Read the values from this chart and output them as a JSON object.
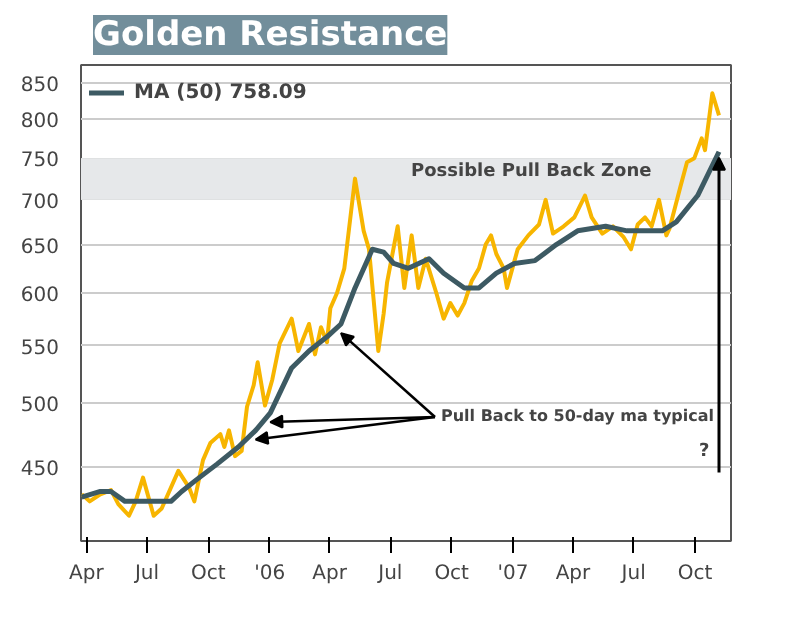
{
  "chart_data": {
    "type": "line",
    "title": "Golden Resistance",
    "log": "y",
    "grid": "y",
    "legend": "top left",
    "marker": "none",
    "line_style": "solid",
    "xlim": [
      "2005-03-24",
      "2007-11-24"
    ],
    "ylim": [
      398,
      875
    ],
    "xticks": [
      {
        "value": "2005-04-01",
        "label": "Apr"
      },
      {
        "value": "2005-07-01",
        "label": "Jul"
      },
      {
        "value": "2005-10-01",
        "label": "Oct"
      },
      {
        "value": "2006-01-01",
        "label": "'06"
      },
      {
        "value": "2006-04-01",
        "label": "Apr"
      },
      {
        "value": "2006-07-01",
        "label": "Jul"
      },
      {
        "value": "2006-10-01",
        "label": "Oct"
      },
      {
        "value": "2007-01-01",
        "label": "'07"
      },
      {
        "value": "2007-04-01",
        "label": "Apr"
      },
      {
        "value": "2007-07-01",
        "label": "Jul"
      },
      {
        "value": "2007-10-01",
        "label": "Oct"
      }
    ],
    "yticks": [
      450,
      500,
      550,
      600,
      650,
      700,
      750,
      800,
      850
    ],
    "bands": [
      {
        "axis": "y",
        "from": 700,
        "to": 750,
        "label": "Possible Pull Back Zone",
        "color": "#e6e8ea"
      }
    ],
    "annotations": [
      {
        "text": "Pull Back to 50-day ma typical",
        "x": "2006-01-02",
        "y": 492
      },
      "?"
    ],
    "series": [
      {
        "color": "#f7b500",
        "x": [
          "2005-03-25",
          "2005-04-06",
          "2005-04-22",
          "2005-05-08",
          "2005-05-19",
          "2005-06-04",
          "2005-06-14",
          "2005-06-25",
          "2005-07-11",
          "2005-07-23",
          "2005-08-17",
          "2005-09-02",
          "2005-09-10",
          "2005-09-23",
          "2005-10-04",
          "2005-10-19",
          "2005-10-25",
          "2005-11-01",
          "2005-11-10",
          "2005-11-20",
          "2005-11-28",
          "2005-12-08",
          "2005-12-14",
          "2005-12-25",
          "2006-01-05",
          "2006-01-16",
          "2006-02-03",
          "2006-02-13",
          "2006-03-01",
          "2006-03-10",
          "2006-03-19",
          "2006-03-28",
          "2006-04-02",
          "2006-04-12",
          "2006-04-23",
          "2006-05-09",
          "2006-05-22",
          "2006-05-30",
          "2006-06-13",
          "2006-06-21",
          "2006-06-26",
          "2006-07-12",
          "2006-07-22",
          "2006-08-02",
          "2006-08-12",
          "2006-08-23",
          "2006-09-08",
          "2006-09-19",
          "2006-09-29",
          "2006-10-10",
          "2006-10-20",
          "2006-10-31",
          "2006-11-11",
          "2006-11-21",
          "2006-11-29",
          "2006-12-07",
          "2006-12-18",
          "2006-12-23",
          "2007-01-08",
          "2007-01-24",
          "2007-02-09",
          "2007-02-19",
          "2007-03-02",
          "2007-03-18",
          "2007-04-03",
          "2007-04-19",
          "2007-04-29",
          "2007-05-15",
          "2007-05-31",
          "2007-06-16",
          "2007-06-27",
          "2007-07-07",
          "2007-07-18",
          "2007-07-28",
          "2007-08-08",
          "2007-08-19",
          "2007-08-24",
          "2007-09-09",
          "2007-09-19",
          "2007-09-30",
          "2007-10-11",
          "2007-10-16",
          "2007-10-27",
          "2007-11-06"
        ],
        "values": [
          430,
          425,
          430,
          433,
          423,
          415,
          425,
          442,
          415,
          420,
          447,
          435,
          425,
          455,
          468,
          475,
          465,
          478,
          458,
          462,
          497,
          515,
          535,
          498,
          520,
          552,
          575,
          545,
          570,
          542,
          567,
          553,
          585,
          600,
          625,
          725,
          665,
          645,
          545,
          580,
          610,
          670,
          605,
          660,
          605,
          635,
          600,
          575,
          590,
          578,
          590,
          612,
          625,
          650,
          660,
          640,
          625,
          605,
          645,
          660,
          672,
          700,
          662,
          670,
          680,
          705,
          680,
          662,
          670,
          658,
          645,
          672,
          680,
          670,
          700,
          660,
          668,
          715,
          745,
          750,
          775,
          760,
          835,
          805
        ]
      },
      {
        "name": "MA (50) 758.09",
        "color": "#3d5a63",
        "x": [
          "2005-03-25",
          "2005-04-22",
          "2005-05-08",
          "2005-05-29",
          "2005-07-11",
          "2005-08-06",
          "2005-08-22",
          "2005-09-12",
          "2005-10-14",
          "2005-11-15",
          "2005-12-11",
          "2006-01-02",
          "2006-02-03",
          "2006-03-01",
          "2006-03-28",
          "2006-04-18",
          "2006-05-09",
          "2006-06-04",
          "2006-06-21",
          "2006-07-06",
          "2006-07-28",
          "2006-08-28",
          "2006-09-19",
          "2006-10-20",
          "2006-11-11",
          "2006-12-07",
          "2007-01-03",
          "2007-02-03",
          "2007-03-07",
          "2007-04-08",
          "2007-05-20",
          "2007-06-21",
          "2007-08-13",
          "2007-09-03",
          "2007-10-05",
          "2007-11-06"
        ],
        "values": [
          428,
          432,
          432,
          425,
          425,
          425,
          432,
          440,
          452,
          465,
          478,
          492,
          530,
          545,
          558,
          570,
          605,
          645,
          642,
          630,
          625,
          635,
          620,
          605,
          605,
          620,
          630,
          633,
          650,
          665,
          670,
          665,
          665,
          675,
          705,
          758
        ]
      }
    ]
  }
}
